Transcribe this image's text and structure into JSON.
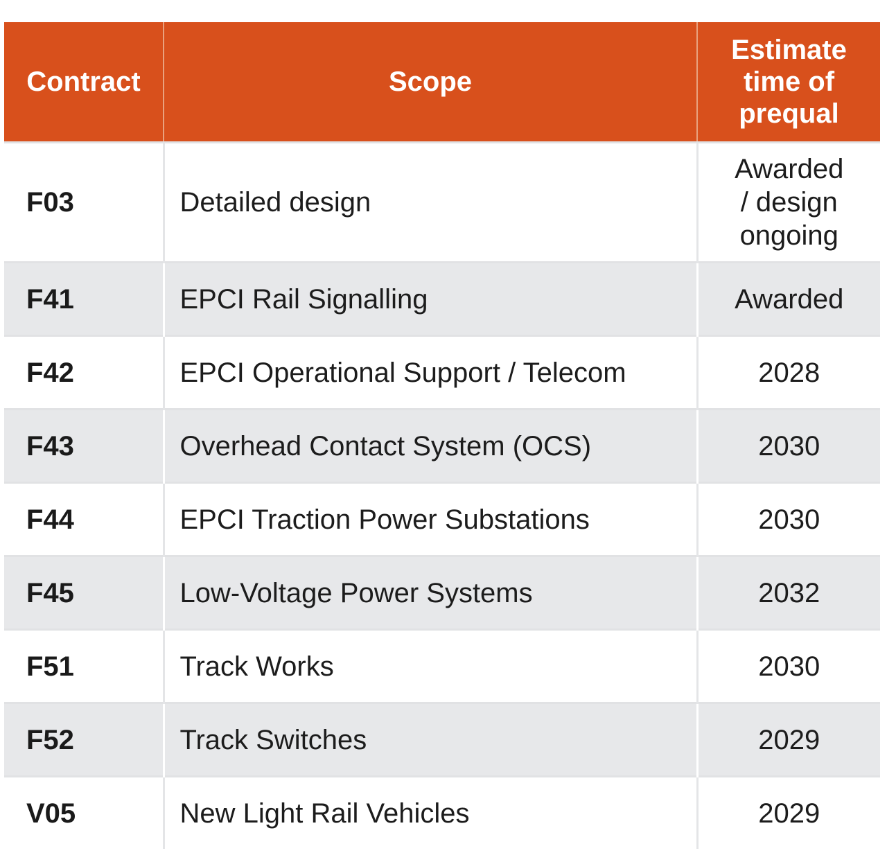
{
  "table": {
    "headers": {
      "contract": "Contract",
      "scope": "Scope",
      "estimate_line1": "Estimate",
      "estimate_line2": "time of",
      "estimate_line3": "prequal"
    },
    "rows": [
      {
        "contract": "F03",
        "scope": "Detailed design",
        "estimate_line1": "Awarded",
        "estimate_line2": "/ design",
        "estimate_line3": "ongoing"
      },
      {
        "contract": "F41",
        "scope": "EPCI Rail Signalling",
        "estimate": "Awarded"
      },
      {
        "contract": "F42",
        "scope": "EPCI Operational Support / Telecom",
        "estimate": "2028"
      },
      {
        "contract": "F43",
        "scope": "Overhead Contact System (OCS)",
        "estimate": "2030"
      },
      {
        "contract": "F44",
        "scope": "EPCI Traction Power Substations",
        "estimate": "2030"
      },
      {
        "contract": "F45",
        "scope": "Low-Voltage Power Systems",
        "estimate": "2032"
      },
      {
        "contract": "F51",
        "scope": "Track Works",
        "estimate": "2030"
      },
      {
        "contract": "F52",
        "scope": "Track Switches",
        "estimate": "2029"
      },
      {
        "contract": "V05",
        "scope": "New Light Rail Vehicles",
        "estimate": "2029"
      }
    ]
  },
  "colors": {
    "header_bg": "#d8501c",
    "header_text": "#ffffff",
    "stripe_bg": "#e7e8ea",
    "row_bg": "#ffffff"
  }
}
